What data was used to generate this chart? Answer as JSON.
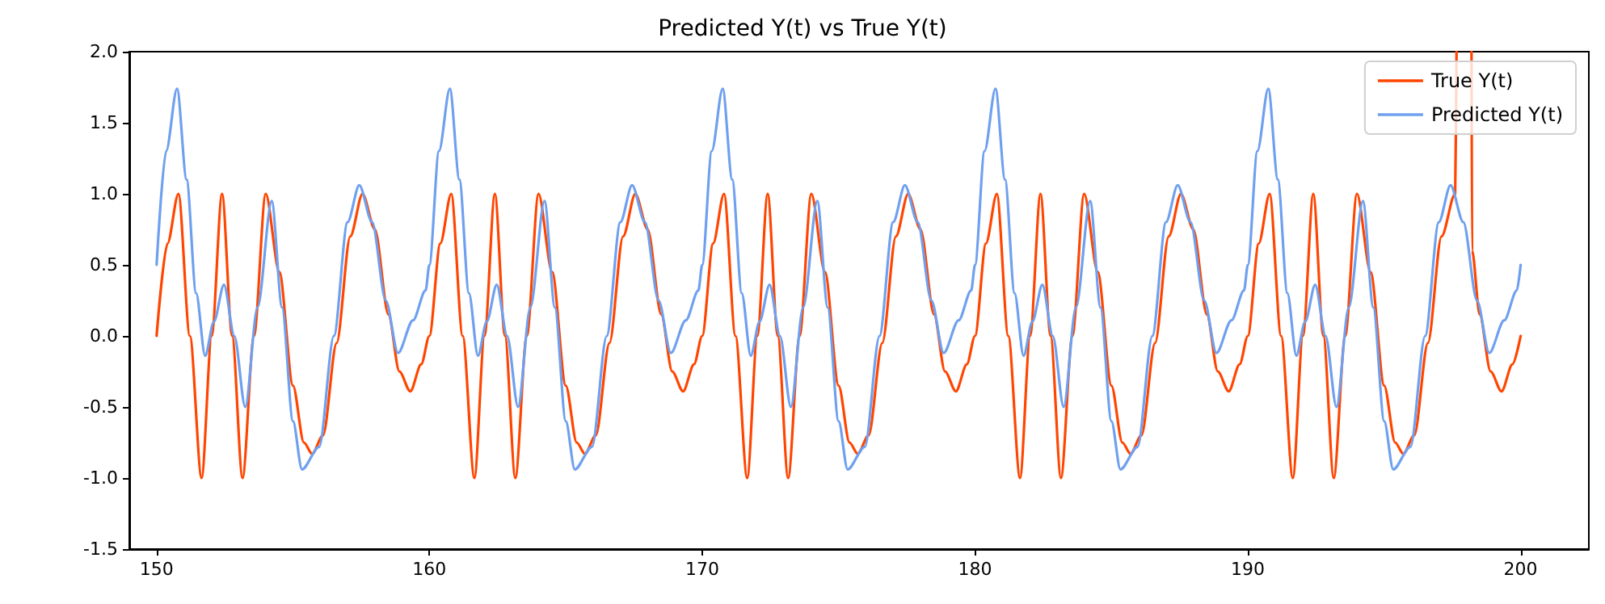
{
  "chart_data": {
    "type": "line",
    "title": "Predicted Y(t) vs True Y(t)",
    "xlim": [
      149,
      202.5
    ],
    "xticks": [
      150,
      160,
      170,
      180,
      190,
      200
    ],
    "ylim": [
      -1.5,
      2
    ],
    "yticks": [
      {
        "value": -1.5,
        "label": "-1.5"
      },
      {
        "value": -1,
        "label": "-1.0"
      },
      {
        "value": -0.5,
        "label": "-0.5"
      },
      {
        "value": 0,
        "label": "0.0"
      },
      {
        "value": 0.5,
        "label": "0.5"
      },
      {
        "value": 1,
        "label": "1.0"
      },
      {
        "value": 1.5,
        "label": "1.5"
      },
      {
        "value": 2,
        "label": "2.0"
      }
    ],
    "grid": false,
    "legend": "top right",
    "marker": "none",
    "line_style": "solid",
    "series": [
      {
        "name": "True Y(t)",
        "color": "#ff4500",
        "x": [
          150,
          150.4,
          150.8,
          151.22,
          151.65,
          152.02,
          152.4,
          152.77,
          153.15,
          153.57,
          154,
          154.5,
          155,
          155.4,
          155.7,
          156.1,
          156.6,
          157.1,
          157.55,
          158,
          158.5,
          158.9,
          159.3,
          159.7,
          160,
          160.4,
          160.8,
          161.22,
          161.65,
          162.02,
          162.4,
          162.77,
          163.15,
          163.57,
          164,
          164.5,
          165,
          165.4,
          165.7,
          166.1,
          166.6,
          167.1,
          167.55,
          168,
          168.5,
          168.9,
          169.3,
          169.7,
          170,
          170.4,
          170.8,
          171.22,
          171.65,
          172.02,
          172.4,
          172.77,
          173.15,
          173.57,
          174,
          174.5,
          175,
          175.4,
          175.7,
          176.1,
          176.6,
          177.1,
          177.55,
          178,
          178.5,
          178.9,
          179.3,
          179.7,
          180,
          180.4,
          180.8,
          181.22,
          181.65,
          182.02,
          182.4,
          182.77,
          183.15,
          183.57,
          184,
          184.5,
          185,
          185.4,
          185.7,
          186.1,
          186.6,
          187.1,
          187.55,
          188,
          188.5,
          188.9,
          189.3,
          189.7,
          190,
          190.4,
          190.8,
          191.22,
          191.65,
          192.02,
          192.4,
          192.77,
          193.15,
          193.57,
          194,
          194.5,
          195,
          195.4,
          195.7,
          196.1,
          196.6,
          197.1,
          197.6,
          197.65,
          197.9,
          198.2,
          198.22,
          198.5,
          198.9,
          199.3,
          199.7,
          200
        ],
        "values": [
          0,
          0.65,
          1,
          0,
          -1,
          0,
          1,
          0,
          -1,
          0,
          1,
          0.45,
          -0.35,
          -0.75,
          -0.83,
          -0.7,
          -0.05,
          0.7,
          1,
          0.75,
          0.15,
          -0.25,
          -0.39,
          -0.2,
          0,
          0.65,
          1,
          0,
          -1,
          0,
          1,
          0,
          -1,
          0,
          1,
          0.45,
          -0.35,
          -0.75,
          -0.83,
          -0.7,
          -0.05,
          0.7,
          1,
          0.75,
          0.15,
          -0.25,
          -0.39,
          -0.2,
          0,
          0.65,
          1,
          0,
          -1,
          0,
          1,
          0,
          -1,
          0,
          1,
          0.45,
          -0.35,
          -0.75,
          -0.83,
          -0.7,
          -0.05,
          0.7,
          1,
          0.75,
          0.15,
          -0.25,
          -0.39,
          -0.2,
          0,
          0.65,
          1,
          0,
          -1,
          0,
          1,
          0,
          -1,
          0,
          1,
          0.45,
          -0.35,
          -0.75,
          -0.83,
          -0.7,
          -0.05,
          0.7,
          1,
          0.75,
          0.15,
          -0.25,
          -0.39,
          -0.2,
          0,
          0.65,
          1,
          0,
          -1,
          0,
          1,
          0,
          -1,
          0,
          1,
          0.45,
          -0.35,
          -0.75,
          -0.83,
          -0.7,
          -0.05,
          0.7,
          1,
          2,
          null,
          2,
          0.6,
          0.15,
          -0.25,
          -0.39,
          -0.2,
          0
        ]
      },
      {
        "name": "Predicted Y(t)",
        "color": "#6fa0ef",
        "x": [
          150,
          150.35,
          150.75,
          151.1,
          151.45,
          151.78,
          152.1,
          152.47,
          152.85,
          153.25,
          153.7,
          154.22,
          154.6,
          155,
          155.33,
          155.96,
          156.5,
          157,
          157.43,
          157.9,
          158.4,
          158.85,
          159.4,
          159.86,
          160,
          160.35,
          160.75,
          161.1,
          161.45,
          161.78,
          162.1,
          162.47,
          162.85,
          163.25,
          163.7,
          164.22,
          164.6,
          165,
          165.33,
          165.96,
          166.5,
          167,
          167.43,
          167.9,
          168.4,
          168.85,
          169.4,
          169.86,
          170,
          170.35,
          170.75,
          171.1,
          171.45,
          171.78,
          172.1,
          172.47,
          172.85,
          173.25,
          173.7,
          174.22,
          174.6,
          175,
          175.33,
          175.96,
          176.5,
          177,
          177.43,
          177.9,
          178.4,
          178.85,
          179.4,
          179.86,
          180,
          180.35,
          180.75,
          181.1,
          181.45,
          181.78,
          182.1,
          182.47,
          182.85,
          183.25,
          183.7,
          184.22,
          184.6,
          185,
          185.33,
          185.96,
          186.5,
          187,
          187.43,
          187.9,
          188.4,
          188.85,
          189.4,
          189.86,
          190,
          190.35,
          190.75,
          191.1,
          191.45,
          191.78,
          192.1,
          192.47,
          192.85,
          193.25,
          193.7,
          194.22,
          194.6,
          195,
          195.33,
          195.96,
          196.5,
          197,
          197.43,
          197.9,
          198.4,
          198.85,
          199.4,
          199.86,
          200
        ],
        "values": [
          0.5,
          1.3,
          1.74,
          1.1,
          0.3,
          -0.14,
          0.1,
          0.36,
          0,
          -0.5,
          0.2,
          0.95,
          0.2,
          -0.6,
          -0.94,
          -0.78,
          0,
          0.8,
          1.06,
          0.8,
          0.25,
          -0.12,
          0.11,
          0.32,
          0.5,
          1.3,
          1.74,
          1.1,
          0.3,
          -0.14,
          0.1,
          0.36,
          0,
          -0.5,
          0.2,
          0.95,
          0.2,
          -0.6,
          -0.94,
          -0.78,
          0,
          0.8,
          1.06,
          0.8,
          0.25,
          -0.12,
          0.11,
          0.32,
          0.5,
          1.3,
          1.74,
          1.1,
          0.3,
          -0.14,
          0.1,
          0.36,
          0,
          -0.5,
          0.2,
          0.95,
          0.2,
          -0.6,
          -0.94,
          -0.78,
          0,
          0.8,
          1.06,
          0.8,
          0.25,
          -0.12,
          0.11,
          0.32,
          0.5,
          1.3,
          1.74,
          1.1,
          0.3,
          -0.14,
          0.1,
          0.36,
          0,
          -0.5,
          0.2,
          0.95,
          0.2,
          -0.6,
          -0.94,
          -0.78,
          0,
          0.8,
          1.06,
          0.8,
          0.25,
          -0.12,
          0.11,
          0.32,
          0.5,
          1.3,
          1.74,
          1.1,
          0.3,
          -0.14,
          0.1,
          0.36,
          0,
          -0.5,
          0.2,
          0.95,
          0.2,
          -0.6,
          -0.94,
          -0.78,
          0,
          0.8,
          1.06,
          0.8,
          0.25,
          -0.12,
          0.11,
          0.32,
          0.5
        ]
      }
    ]
  }
}
